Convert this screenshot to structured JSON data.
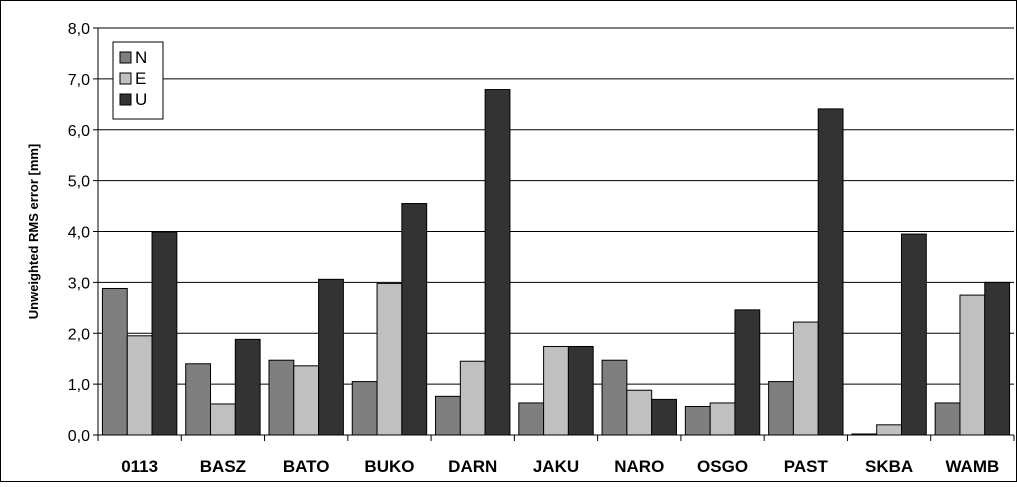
{
  "chart_data": {
    "type": "bar",
    "title": "",
    "xlabel": "",
    "ylabel": "Unweighted RMS error [mm]",
    "ylim": [
      0,
      8
    ],
    "yticks": [
      "0,0",
      "1,0",
      "2,0",
      "3,0",
      "4,0",
      "5,0",
      "6,0",
      "7,0",
      "8,0"
    ],
    "grid": true,
    "legend_position": "top-left",
    "categories": [
      "0113",
      "BASZ",
      "BATO",
      "BUKO",
      "DARN",
      "JAKU",
      "NARO",
      "OSGO",
      "PAST",
      "SKBA",
      "WAMB"
    ],
    "series": [
      {
        "name": "N",
        "color": "#7f7f7f",
        "values": [
          2.88,
          1.4,
          1.47,
          1.05,
          0.76,
          0.63,
          1.47,
          0.56,
          1.05,
          0.02,
          0.63
        ]
      },
      {
        "name": "E",
        "color": "#c0c0c0",
        "values": [
          1.95,
          0.61,
          1.36,
          2.98,
          1.45,
          1.74,
          0.88,
          0.63,
          2.22,
          0.2,
          2.75
        ]
      },
      {
        "name": "U",
        "color": "#333333",
        "values": [
          3.99,
          1.88,
          3.06,
          4.55,
          6.79,
          1.74,
          0.7,
          2.46,
          6.41,
          3.95,
          3.0
        ]
      }
    ]
  }
}
